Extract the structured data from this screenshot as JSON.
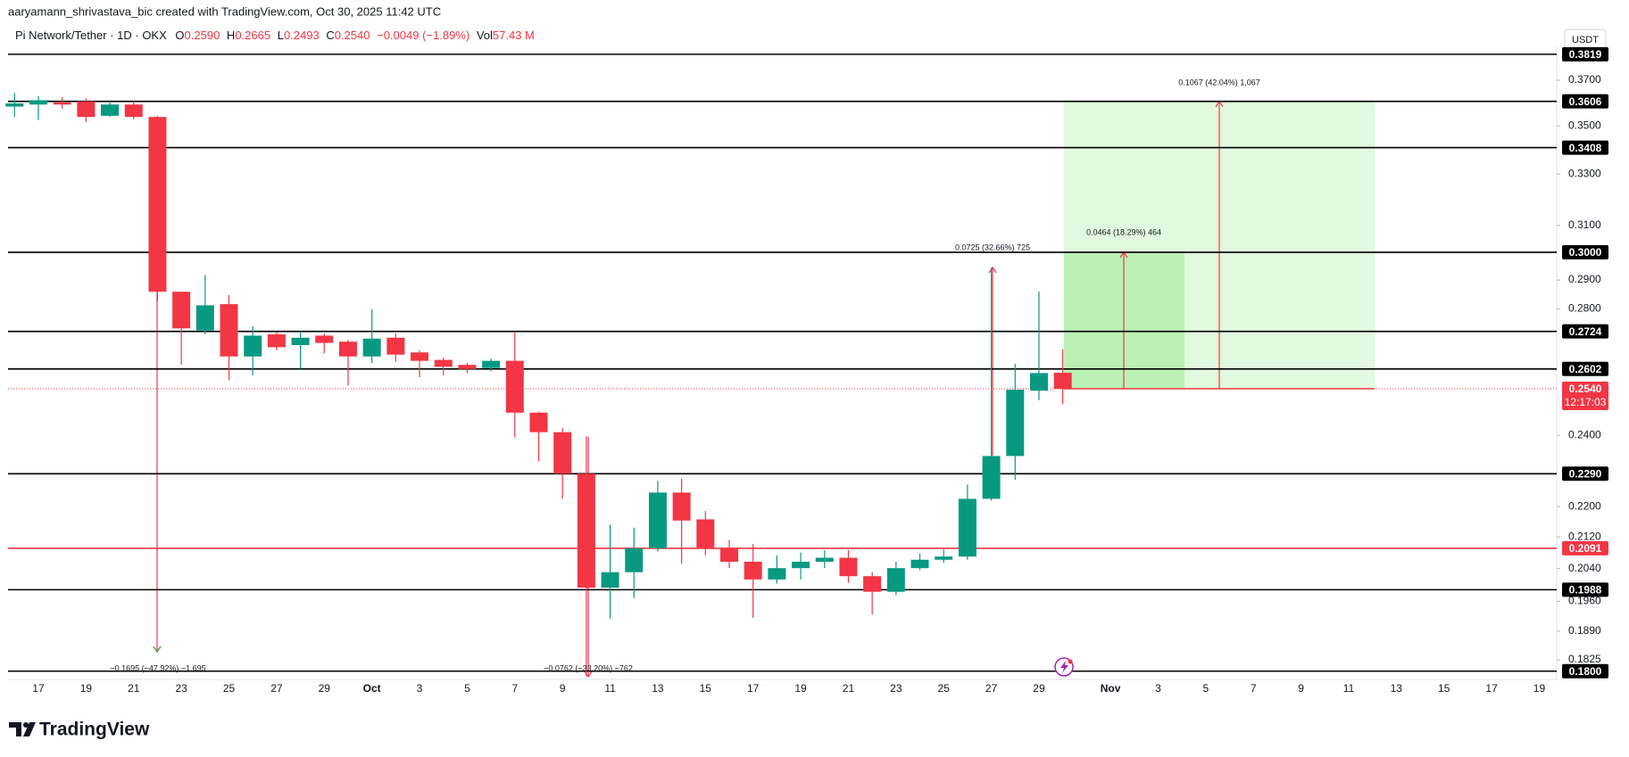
{
  "header": {
    "byline": "aaryamann_shrivastava_bic created with TradingView.com, Oct 30, 2025 11:42 UTC",
    "symbol": "Pi Network/Tether · 1D · OKX",
    "ohlc": [
      {
        "key": "O",
        "value": "0.2590"
      },
      {
        "key": "H",
        "value": "0.2665"
      },
      {
        "key": "L",
        "value": "0.2493"
      },
      {
        "key": "C",
        "value": "0.2540"
      }
    ],
    "change": "−0.0049 (−1.89%)",
    "volume_key": "Vol",
    "volume": "57.43 M",
    "currency": "USDT",
    "brand": "TradingView"
  },
  "chart_data": {
    "type": "candlestick",
    "categories": [
      null,
      "17",
      null,
      "19",
      null,
      "21",
      null,
      "23",
      null,
      "25",
      null,
      "27",
      null,
      "29",
      null,
      "Oct",
      null,
      "3",
      null,
      "5",
      null,
      "7",
      null,
      "9",
      null,
      "11",
      null,
      "13",
      null,
      "15",
      null,
      "17",
      null,
      "19",
      null,
      "21",
      null,
      "23",
      null,
      "25",
      null,
      "27",
      null,
      "29",
      null,
      null,
      "Nov",
      null,
      "3",
      null,
      "5",
      null,
      "7",
      null,
      "9",
      null,
      "11",
      null,
      "13",
      null,
      "15",
      null,
      "17",
      null,
      "19",
      null
    ],
    "open": [
      0.3583,
      0.3592,
      0.3601,
      0.3606,
      0.3543,
      0.3592,
      0.3538,
      0.2859,
      0.2727,
      0.2816,
      0.2642,
      0.2714,
      0.2679,
      0.271,
      0.269,
      0.2642,
      0.2703,
      0.2655,
      0.2631,
      0.2615,
      0.2605,
      0.2628,
      0.2467,
      0.2409,
      0.229,
      0.1993,
      0.2031,
      0.2091,
      0.2238,
      0.2166,
      0.2091,
      0.2057,
      0.2013,
      0.2041,
      0.2057,
      0.2067,
      0.2021,
      0.1983,
      0.2041,
      0.2062,
      0.207,
      0.2221,
      0.234,
      0.2534,
      0.259,
      null,
      null,
      null,
      null,
      null,
      null,
      null,
      null,
      null,
      null,
      null,
      null,
      null,
      null,
      null,
      null,
      null,
      null,
      null,
      null,
      null
    ],
    "high": [
      0.3643,
      0.3629,
      0.3624,
      0.362,
      0.3606,
      0.3606,
      0.3543,
      0.2859,
      0.2918,
      0.2848,
      0.2741,
      0.2721,
      0.2721,
      0.2717,
      0.2696,
      0.2798,
      0.2717,
      0.2662,
      0.2638,
      0.2621,
      0.2635,
      0.2721,
      0.247,
      0.2421,
      0.2397,
      0.2152,
      0.2144,
      0.227,
      0.2276,
      0.2188,
      0.2112,
      0.2102,
      0.2073,
      0.208,
      0.2086,
      0.2086,
      0.2031,
      0.2057,
      0.2078,
      0.2088,
      0.226,
      0.2944,
      0.2618,
      0.2859,
      0.2665,
      null,
      null,
      null,
      null,
      null,
      null,
      null,
      null,
      null,
      null,
      null,
      null,
      null,
      null,
      null,
      null,
      null,
      null,
      null,
      null,
      null
    ],
    "low": [
      0.3538,
      0.3525,
      0.3574,
      0.3516,
      0.3538,
      0.3529,
      0.2827,
      0.2615,
      0.2714,
      0.2566,
      0.2582,
      0.2662,
      0.2602,
      0.2652,
      0.255,
      0.2621,
      0.2625,
      0.2576,
      0.2582,
      0.2589,
      0.2595,
      0.2394,
      0.2325,
      0.2221,
      0.1789,
      0.1919,
      0.1968,
      0.2083,
      0.2052,
      0.2073,
      0.2041,
      0.1921,
      0.2003,
      0.2013,
      0.2041,
      0.2005,
      0.1929,
      0.1975,
      0.2036,
      0.2054,
      0.2062,
      0.2216,
      0.2273,
      0.2505,
      0.2493,
      null,
      null,
      null,
      null,
      null,
      null,
      null,
      null,
      null,
      null,
      null,
      null,
      null,
      null,
      null,
      null,
      null,
      null,
      null,
      null,
      null
    ],
    "close": [
      0.3597,
      0.3611,
      0.3592,
      0.3538,
      0.3592,
      0.3538,
      0.2859,
      0.2734,
      0.2812,
      0.2642,
      0.271,
      0.2672,
      0.2703,
      0.2686,
      0.2642,
      0.27,
      0.2648,
      0.2628,
      0.2609,
      0.2602,
      0.2628,
      0.2467,
      0.2409,
      0.229,
      0.1993,
      0.2031,
      0.2091,
      0.2238,
      0.2163,
      0.2091,
      0.2057,
      0.2013,
      0.2041,
      0.2057,
      0.2067,
      0.2021,
      0.1983,
      0.2041,
      0.2062,
      0.207,
      0.2221,
      0.234,
      0.2537,
      0.2589,
      0.254,
      null,
      null,
      null,
      null,
      null,
      null,
      null,
      null,
      null,
      null,
      null,
      null,
      null,
      null,
      null,
      null,
      null,
      null,
      null,
      null,
      null
    ],
    "up_color": "#089981",
    "down_color": "#f23645",
    "log_scale": true,
    "grid": false,
    "ylim": [
      0.1782,
      0.3856
    ],
    "yticks": [
      {
        "value": 0.37,
        "label": "0.3700"
      },
      {
        "value": 0.35,
        "label": "0.3500"
      },
      {
        "value": 0.33,
        "label": "0.3300"
      },
      {
        "value": 0.31,
        "label": "0.3100"
      },
      {
        "value": 0.29,
        "label": "0.2900"
      },
      {
        "value": 0.28,
        "label": "0.2800"
      },
      {
        "value": 0.24,
        "label": "0.2400"
      },
      {
        "value": 0.22,
        "label": "0.2200"
      },
      {
        "value": 0.212,
        "label": "0.2120"
      },
      {
        "value": 0.204,
        "label": "0.2040"
      },
      {
        "value": 0.196,
        "label": "0.1960"
      },
      {
        "value": 0.189,
        "label": "0.1890"
      },
      {
        "value": 0.1825,
        "label": "0.1825"
      }
    ],
    "levels": [
      {
        "value": 0.3819,
        "label": "0.3819",
        "color": "#000000"
      },
      {
        "value": 0.3606,
        "label": "0.3606",
        "color": "#000000"
      },
      {
        "value": 0.3408,
        "label": "0.3408",
        "color": "#000000"
      },
      {
        "value": 0.3,
        "label": "0.3000",
        "color": "#000000"
      },
      {
        "value": 0.2724,
        "label": "0.2724",
        "color": "#000000"
      },
      {
        "value": 0.2602,
        "label": "0.2602",
        "color": "#000000"
      },
      {
        "value": 0.229,
        "label": "0.2290",
        "color": "#000000"
      },
      {
        "value": 0.2091,
        "label": "0.2091",
        "color": "#f23645"
      },
      {
        "value": 0.1988,
        "label": "0.1988",
        "color": "#000000"
      },
      {
        "value": 0.18,
        "label": "0.1800",
        "color": "#000000"
      }
    ],
    "current": {
      "value": 0.254,
      "label": "0.2540",
      "countdown": "12:17:03",
      "color": "#f23645"
    },
    "annotations": [
      "0.1067 (42.04%) 1,067",
      "0.0464 (18.29%) 464",
      "0.0725 (32.66%) 725",
      "−0.1695 (−47.92%) −1,695",
      "−0.0762 (−33.20%) −762"
    ]
  }
}
